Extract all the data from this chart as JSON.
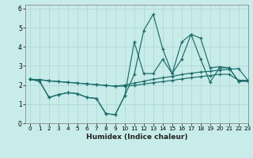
{
  "xlabel": "Humidex (Indice chaleur)",
  "ylabel": "",
  "bg_color": "#c8ece9",
  "line_color": "#1a6b6b",
  "grid_color": "#b0d8d5",
  "xlim": [
    -0.5,
    23
  ],
  "ylim": [
    0,
    6.2
  ],
  "xticks": [
    0,
    1,
    2,
    3,
    4,
    5,
    6,
    7,
    8,
    9,
    10,
    11,
    12,
    13,
    14,
    15,
    16,
    17,
    18,
    19,
    20,
    21,
    22,
    23
  ],
  "yticks": [
    0,
    1,
    2,
    3,
    4,
    5,
    6
  ],
  "series": [
    [
      2.3,
      2.2,
      1.35,
      1.5,
      1.6,
      1.55,
      1.35,
      1.3,
      0.5,
      0.45,
      1.45,
      2.55,
      4.85,
      5.7,
      3.9,
      2.6,
      4.25,
      4.65,
      4.45,
      2.9,
      2.95,
      2.9,
      2.2,
      2.2
    ],
    [
      2.3,
      2.2,
      1.35,
      1.5,
      1.6,
      1.55,
      1.35,
      1.3,
      0.5,
      0.45,
      1.45,
      4.25,
      2.6,
      2.6,
      3.35,
      2.6,
      3.35,
      4.65,
      3.35,
      2.15,
      2.9,
      2.9,
      2.2,
      2.2
    ],
    [
      2.3,
      2.28,
      2.22,
      2.18,
      2.14,
      2.1,
      2.06,
      2.02,
      1.98,
      1.94,
      2.0,
      2.1,
      2.2,
      2.3,
      2.38,
      2.45,
      2.55,
      2.62,
      2.68,
      2.72,
      2.78,
      2.82,
      2.86,
      2.25
    ],
    [
      2.3,
      2.28,
      2.22,
      2.18,
      2.14,
      2.1,
      2.06,
      2.02,
      1.98,
      1.94,
      1.94,
      1.98,
      2.05,
      2.12,
      2.18,
      2.24,
      2.32,
      2.38,
      2.44,
      2.5,
      2.56,
      2.56,
      2.25,
      2.25
    ]
  ]
}
